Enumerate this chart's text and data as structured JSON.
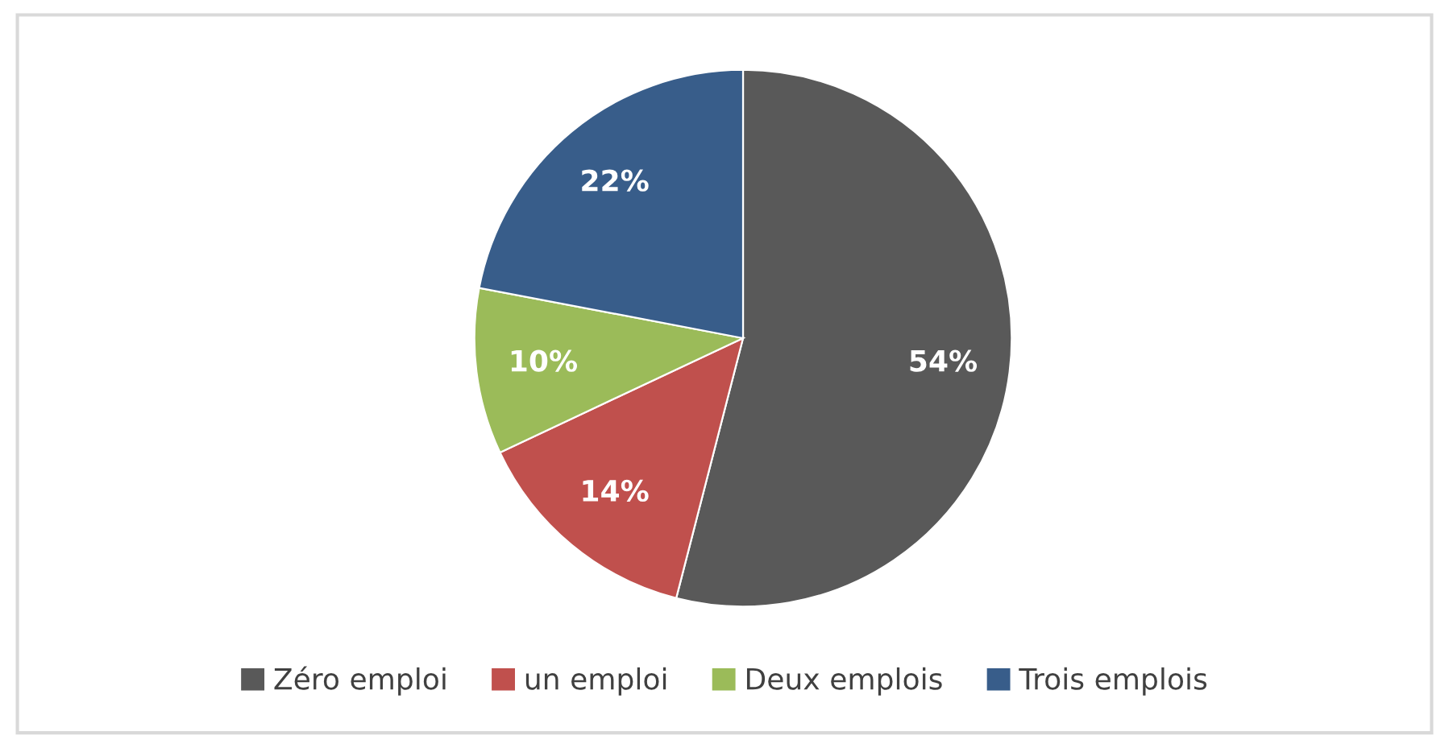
{
  "chart_data": {
    "type": "pie",
    "categories": [
      "Zéro emploi",
      "un emploi",
      "Deux emplois",
      "Trois emplois"
    ],
    "values": [
      54,
      14,
      10,
      22
    ],
    "colors": [
      "#595959",
      "#c0504d",
      "#9bbb59",
      "#385d8a"
    ],
    "value_labels": [
      "54%",
      "14%",
      "10%",
      "22%"
    ],
    "legend": "bottom"
  }
}
